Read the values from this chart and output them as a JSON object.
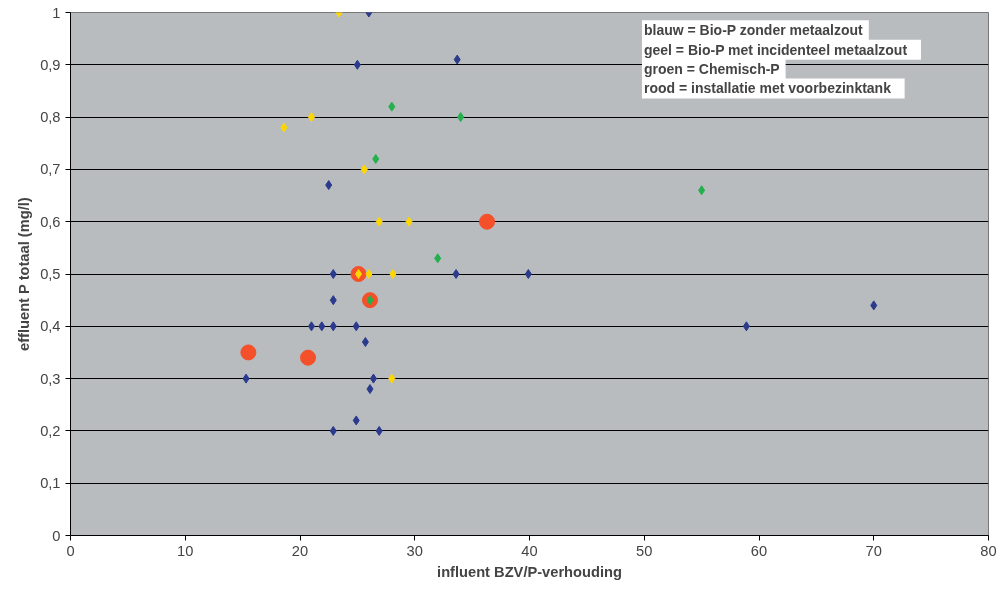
{
  "chart_data": {
    "type": "scatter",
    "xlabel": "influent BZV/P-verhouding",
    "ylabel": "effluent P totaal (mg/l)",
    "xlim": [
      0,
      80
    ],
    "ylim": [
      0,
      1
    ],
    "xticks": [
      0,
      10,
      20,
      30,
      40,
      50,
      60,
      70,
      80
    ],
    "yticks": [
      {
        "value": 0,
        "label": "0"
      },
      {
        "value": 0.1,
        "label": "0,1"
      },
      {
        "value": 0.2,
        "label": "0,2"
      },
      {
        "value": 0.3,
        "label": "0,3"
      },
      {
        "value": 0.4,
        "label": "0,4"
      },
      {
        "value": 0.5,
        "label": "0,5"
      },
      {
        "value": 0.6,
        "label": "0,6"
      },
      {
        "value": 0.7,
        "label": "0,7"
      },
      {
        "value": 0.8,
        "label": "0,8"
      },
      {
        "value": 0.9,
        "label": "0,9"
      },
      {
        "value": 1,
        "label": "1"
      }
    ],
    "grid": "y",
    "annotations": [
      "blauw  = Bio-P zonder metaalzout",
      "geel    = Bio-P met incidenteel metaalzout",
      "groen  = Chemisch-P",
      "rood    = installatie met voorbezinktank"
    ],
    "series": [
      {
        "color": "#2b3a8c",
        "marker": "diamond",
        "x": [
          26.0,
          33.7,
          25.0,
          22.5,
          22.9,
          33.6,
          39.9,
          22.9,
          21.0,
          21.9,
          22.9,
          24.9,
          58.9,
          70.0,
          25.7,
          15.3,
          26.4,
          26.1,
          24.9,
          22.9,
          26.9
        ],
        "values": [
          1.0,
          0.91,
          0.9,
          0.67,
          0.5,
          0.5,
          0.5,
          0.45,
          0.4,
          0.4,
          0.4,
          0.4,
          0.4,
          0.44,
          0.37,
          0.3,
          0.3,
          0.28,
          0.22,
          0.2,
          0.2
        ]
      },
      {
        "color": "#ffd700",
        "marker": "diamond",
        "x": [
          23.4,
          18.6,
          21.0,
          25.6,
          26.9,
          29.5,
          26.0,
          28.1,
          28.0,
          25.1
        ],
        "values": [
          1.0,
          0.78,
          0.8,
          0.7,
          0.6,
          0.6,
          0.5,
          0.5,
          0.3,
          0.5
        ]
      },
      {
        "color": "#22b14c",
        "marker": "diamond",
        "x": [
          28.0,
          34.0,
          26.6,
          32.0,
          55.0,
          26.1
        ],
        "values": [
          0.82,
          0.8,
          0.72,
          0.53,
          0.66,
          0.45
        ]
      },
      {
        "color": "#f4502a",
        "marker": "circle",
        "x": [
          36.3,
          25.1,
          26.1,
          15.5,
          20.7
        ],
        "values": [
          0.6,
          0.5,
          0.45,
          0.35,
          0.34
        ]
      }
    ]
  }
}
